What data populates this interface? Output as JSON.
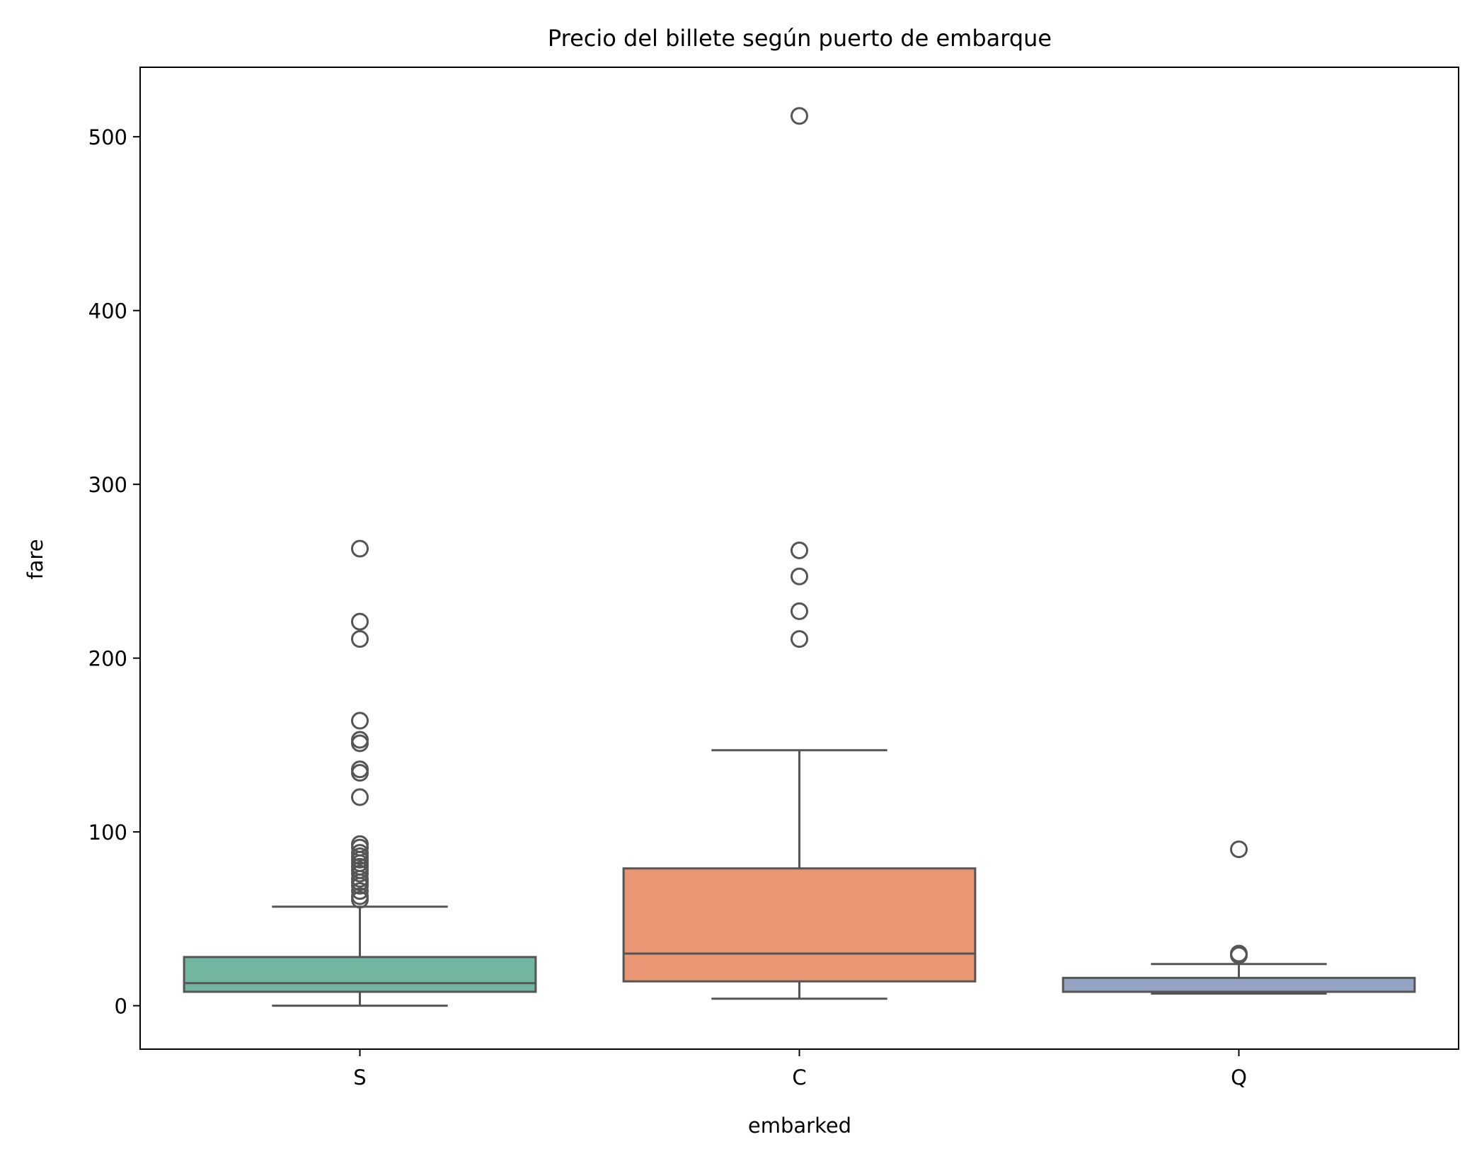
{
  "chart_data": {
    "type": "box",
    "title": "Precio del billete según puerto de embarque",
    "xlabel": "embarked",
    "ylabel": "fare",
    "ylim": [
      -25,
      540
    ],
    "yticks": [
      0,
      100,
      200,
      300,
      400,
      500
    ],
    "grid": false,
    "categories": [
      "S",
      "C",
      "Q"
    ],
    "boxes": [
      {
        "category": "S",
        "color": "#72b6a1",
        "whisker_low": 0,
        "q1": 8,
        "median": 13,
        "q3": 28,
        "whisker_high": 57,
        "outliers": [
          61,
          63,
          66,
          69,
          71,
          73,
          76,
          78,
          80,
          82,
          84,
          86,
          88,
          91,
          93,
          120,
          134,
          136,
          151,
          153,
          164,
          211,
          221,
          263
        ]
      },
      {
        "category": "C",
        "color": "#e99675",
        "whisker_low": 4,
        "q1": 14,
        "median": 30,
        "q3": 79,
        "whisker_high": 147,
        "outliers": [
          211,
          227,
          247,
          262,
          512
        ]
      },
      {
        "category": "Q",
        "color": "#95a3c3",
        "whisker_low": 7,
        "q1": 8,
        "median": 8,
        "q3": 16,
        "whisker_high": 24,
        "outliers": [
          29,
          30,
          90
        ]
      }
    ]
  }
}
